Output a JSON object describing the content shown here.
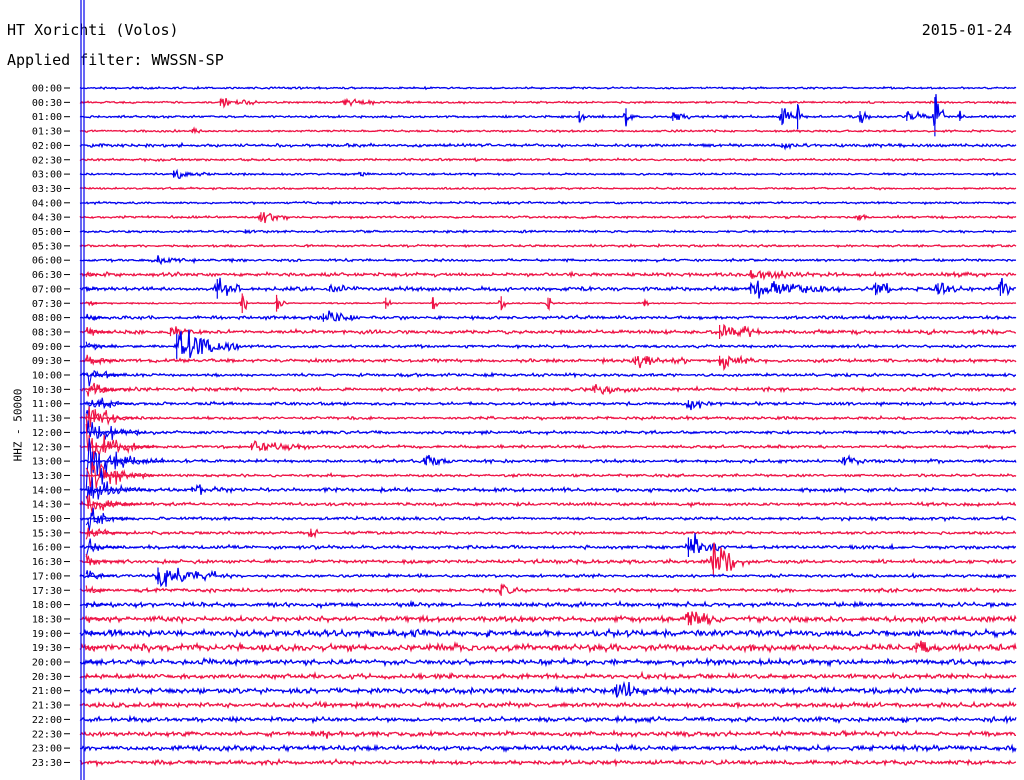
{
  "header": {
    "station": "HT Xorichti (Volos)",
    "date": "2015-01-24",
    "filter": "Applied filter: WWSSN-SP"
  },
  "colors": {
    "even_trace": "#0000ee",
    "odd_trace": "#ee1144",
    "axis": "#000000",
    "background": "#ffffff"
  },
  "chart_data": {
    "type": "line",
    "title": "HT Xorichti (Volos)",
    "subtitle": "Applied filter: WWSSN-SP",
    "date": "2015-01-24",
    "ylabel": "HHZ - 50000",
    "row_labels": [
      "00:00",
      "00:30",
      "01:00",
      "01:30",
      "02:00",
      "02:30",
      "03:00",
      "03:30",
      "04:00",
      "04:30",
      "05:00",
      "05:30",
      "06:00",
      "06:30",
      "07:00",
      "07:30",
      "08:00",
      "08:30",
      "09:00",
      "09:30",
      "10:00",
      "10:30",
      "11:00",
      "11:30",
      "12:00",
      "12:30",
      "13:00",
      "13:30",
      "14:00",
      "14:30",
      "15:00",
      "15:30",
      "16:00",
      "16:30",
      "17:00",
      "17:30",
      "18:00",
      "18:30",
      "19:00",
      "19:30",
      "20:00",
      "20:30",
      "21:00",
      "21:30",
      "22:00",
      "22:30",
      "23:00",
      "23:30"
    ],
    "minutes_per_row": 30,
    "noise_level": [
      0.8,
      0.9,
      1.0,
      0.9,
      1.3,
      1.0,
      0.9,
      0.8,
      0.9,
      1.0,
      1.0,
      1.0,
      1.1,
      1.5,
      1.6,
      0.6,
      1.4,
      1.6,
      1.2,
      1.5,
      1.3,
      1.4,
      1.3,
      1.2,
      1.3,
      1.2,
      1.3,
      1.2,
      1.5,
      1.4,
      1.3,
      1.2,
      1.4,
      1.5,
      1.3,
      1.4,
      1.8,
      2.3,
      2.6,
      2.8,
      2.2,
      2.0,
      2.3,
      2.0,
      1.9,
      2.0,
      2.1,
      1.8
    ],
    "events": [
      {
        "row": 1,
        "minute": 4.5,
        "amplitude": 5,
        "duration": 1.2
      },
      {
        "row": 1,
        "minute": 8.5,
        "amplitude": 4,
        "duration": 1.0
      },
      {
        "row": 2,
        "minute": 16,
        "amplitude": 8,
        "duration": 0.2
      },
      {
        "row": 2,
        "minute": 17.5,
        "amplitude": 12,
        "duration": 0.2
      },
      {
        "row": 2,
        "minute": 19,
        "amplitude": 6,
        "duration": 0.6
      },
      {
        "row": 2,
        "minute": 22.5,
        "amplitude": 12,
        "duration": 0.4
      },
      {
        "row": 2,
        "minute": 23,
        "amplitude": 18,
        "duration": 0.2
      },
      {
        "row": 2,
        "minute": 25,
        "amplitude": 8,
        "duration": 0.4
      },
      {
        "row": 2,
        "minute": 26.5,
        "amplitude": 6,
        "duration": 0.8
      },
      {
        "row": 2,
        "minute": 27.4,
        "amplitude": 28,
        "duration": 0.3
      },
      {
        "row": 2,
        "minute": 28.2,
        "amplitude": 6,
        "duration": 0.3
      },
      {
        "row": 3,
        "minute": 3.6,
        "amplitude": 3,
        "duration": 0.4
      },
      {
        "row": 4,
        "minute": 22.5,
        "amplitude": 3,
        "duration": 0.6
      },
      {
        "row": 6,
        "minute": 3,
        "amplitude": 5,
        "duration": 1.0
      },
      {
        "row": 6,
        "minute": 9,
        "amplitude": 3,
        "duration": 0.3
      },
      {
        "row": 9,
        "minute": 5.8,
        "amplitude": 7,
        "duration": 0.9
      },
      {
        "row": 9,
        "minute": 25,
        "amplitude": 3,
        "duration": 0.3
      },
      {
        "row": 10,
        "minute": 5.3,
        "amplitude": 3,
        "duration": 0.3
      },
      {
        "row": 12,
        "minute": 2.5,
        "amplitude": 3,
        "duration": 1.2
      },
      {
        "row": 13,
        "minute": 21.5,
        "amplitude": 4,
        "duration": 2.0
      },
      {
        "row": 14,
        "minute": 4.4,
        "amplitude": 14,
        "duration": 0.8
      },
      {
        "row": 14,
        "minute": 8,
        "amplitude": 4,
        "duration": 1.0
      },
      {
        "row": 14,
        "minute": 21.5,
        "amplitude": 7,
        "duration": 3.0
      },
      {
        "row": 14,
        "minute": 25.5,
        "amplitude": 9,
        "duration": 0.8
      },
      {
        "row": 14,
        "minute": 27.5,
        "amplitude": 8,
        "duration": 0.8
      },
      {
        "row": 14,
        "minute": 29.5,
        "amplitude": 10,
        "duration": 0.4
      },
      {
        "row": 15,
        "minute": 5.2,
        "amplitude": 14,
        "duration": 0.2
      },
      {
        "row": 15,
        "minute": 6.3,
        "amplitude": 12,
        "duration": 0.3
      },
      {
        "row": 15,
        "minute": 9.8,
        "amplitude": 8,
        "duration": 0.2
      },
      {
        "row": 15,
        "minute": 11.3,
        "amplitude": 8,
        "duration": 0.2
      },
      {
        "row": 15,
        "minute": 13.5,
        "amplitude": 10,
        "duration": 0.2
      },
      {
        "row": 15,
        "minute": 15,
        "amplitude": 8,
        "duration": 0.2
      },
      {
        "row": 15,
        "minute": 18.1,
        "amplitude": 4,
        "duration": 0.2
      },
      {
        "row": 16,
        "minute": 7.8,
        "amplitude": 6,
        "duration": 1.0
      },
      {
        "row": 17,
        "minute": 2.9,
        "amplitude": 6,
        "duration": 0.6
      },
      {
        "row": 17,
        "minute": 20.5,
        "amplitude": 10,
        "duration": 1.2
      },
      {
        "row": 18,
        "minute": 3.1,
        "amplitude": 18,
        "duration": 2.0
      },
      {
        "row": 19,
        "minute": 17.8,
        "amplitude": 6,
        "duration": 1.8
      },
      {
        "row": 19,
        "minute": 20.5,
        "amplitude": 7,
        "duration": 1.2
      },
      {
        "row": 21,
        "minute": 16.5,
        "amplitude": 5,
        "duration": 1.4
      },
      {
        "row": 22,
        "minute": 19.5,
        "amplitude": 5,
        "duration": 0.8
      },
      {
        "row": 25,
        "minute": 5.5,
        "amplitude": 5,
        "duration": 2.0
      },
      {
        "row": 26,
        "minute": 11.1,
        "amplitude": 6,
        "duration": 1.0
      },
      {
        "row": 26,
        "minute": 24.5,
        "amplitude": 6,
        "duration": 0.8
      },
      {
        "row": 28,
        "minute": 3.6,
        "amplitude": 3,
        "duration": 1.2
      },
      {
        "row": 31,
        "minute": 7.4,
        "amplitude": 6,
        "duration": 0.3
      },
      {
        "row": 32,
        "minute": 19.5,
        "amplitude": 14,
        "duration": 1.0
      },
      {
        "row": 33,
        "minute": 20.3,
        "amplitude": 20,
        "duration": 1.0
      },
      {
        "row": 34,
        "minute": 2.5,
        "amplitude": 12,
        "duration": 2.5
      },
      {
        "row": 35,
        "minute": 13.5,
        "amplitude": 8,
        "duration": 0.8
      },
      {
        "row": 37,
        "minute": 19.5,
        "amplitude": 9,
        "duration": 1.2
      },
      {
        "row": 39,
        "minute": 26.8,
        "amplitude": 7,
        "duration": 1.0
      },
      {
        "row": 42,
        "minute": 17.2,
        "amplitude": 9,
        "duration": 1.0
      },
      {
        "row": 45,
        "minute": 7.8,
        "amplitude": 4,
        "duration": 0.4
      }
    ],
    "main_quake": {
      "start_row": 13,
      "end_row": 41,
      "minute": 0.2,
      "peak_row": 26,
      "peak_amplitude": 55,
      "coda_minutes": 2.5
    },
    "grid": false
  }
}
